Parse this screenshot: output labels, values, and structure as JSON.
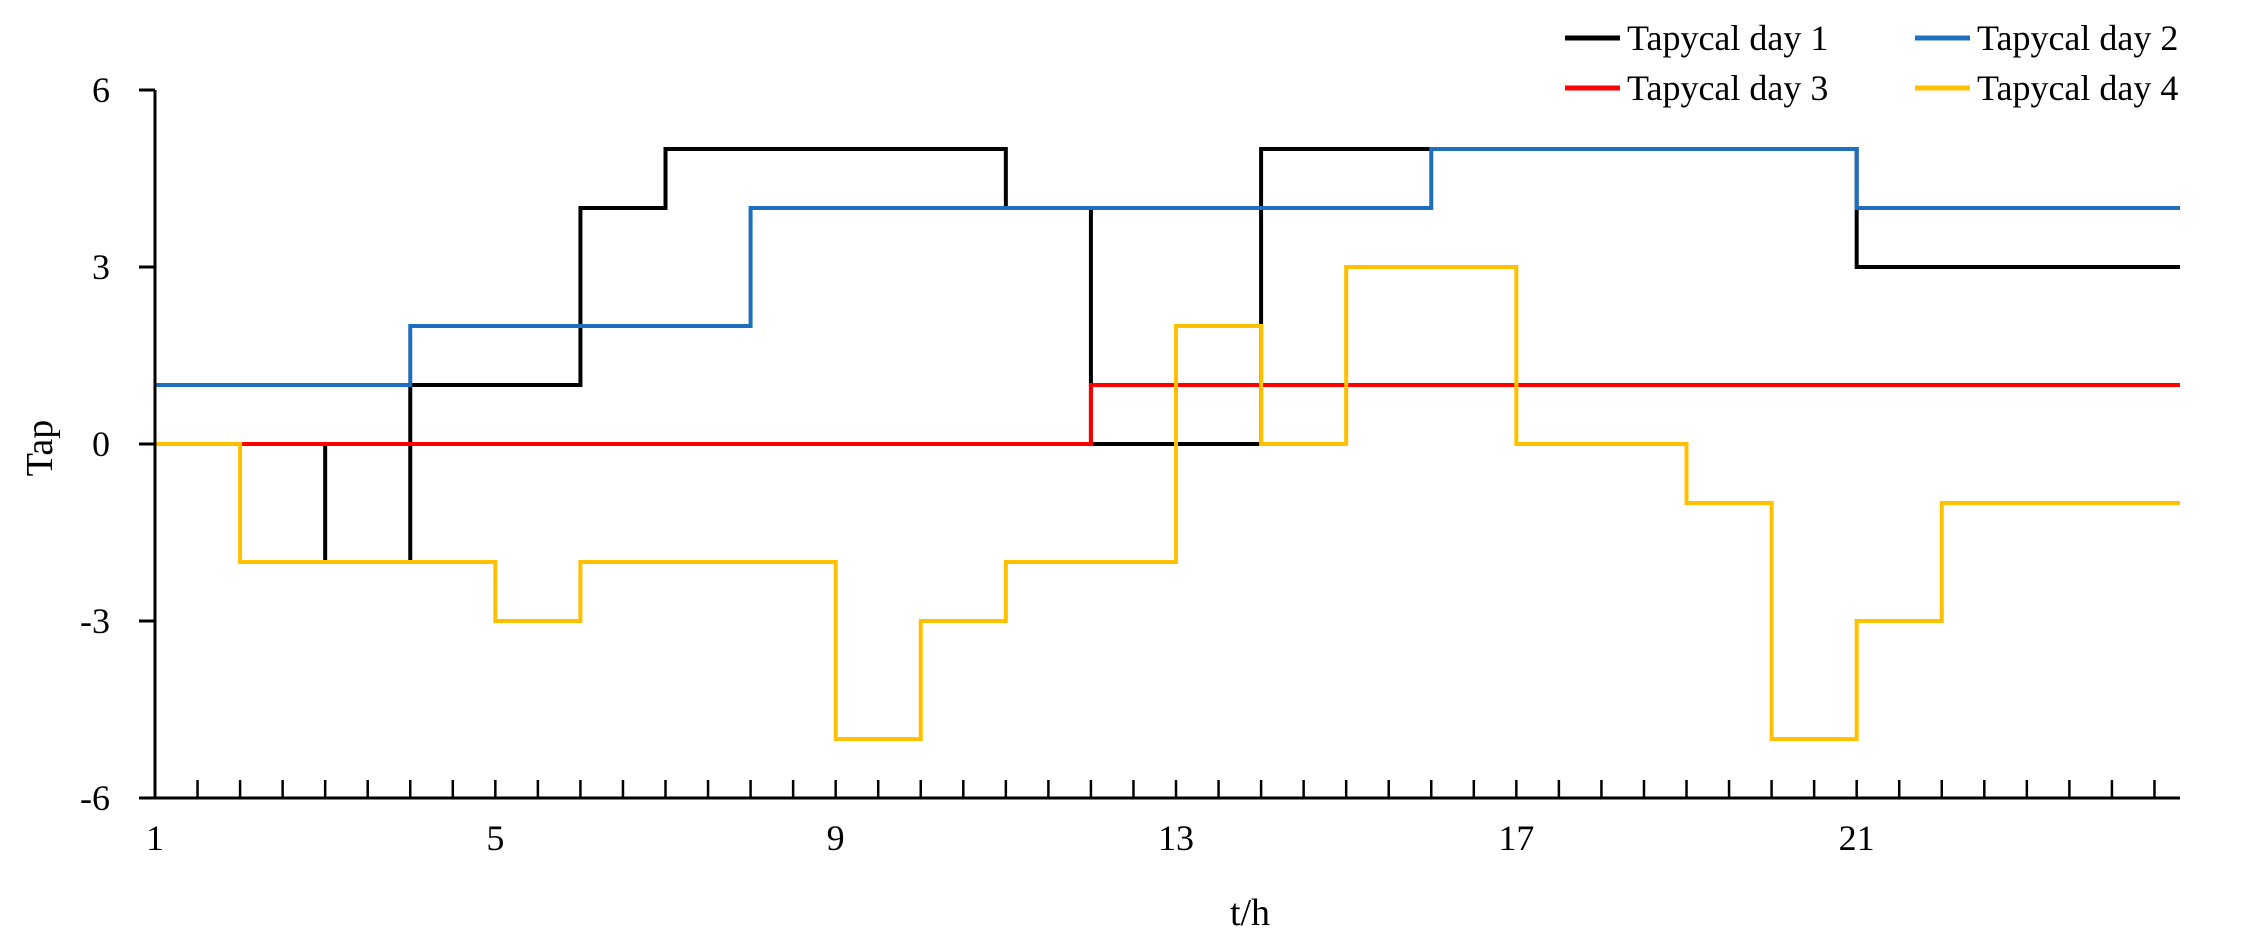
{
  "chart_data": {
    "type": "line",
    "step": "post",
    "xlabel": "t/h",
    "ylabel": "Tap",
    "xlim": [
      1,
      24
    ],
    "ylim": [
      -6,
      6
    ],
    "xticks": [
      1,
      5,
      9,
      13,
      17,
      21
    ],
    "yticks": [
      -6,
      -3,
      0,
      3,
      6
    ],
    "x": [
      1,
      2,
      3,
      4,
      5,
      6,
      7,
      8,
      9,
      10,
      11,
      12,
      13,
      14,
      15,
      16,
      17,
      18,
      19,
      20,
      21,
      22,
      23,
      24
    ],
    "legend_position": "top-right",
    "series": [
      {
        "name": "Tapycal day 1",
        "color": "#000000",
        "values": [
          0,
          0,
          -2,
          1,
          1,
          4,
          5,
          5,
          5,
          5,
          4,
          0,
          0,
          5,
          5,
          5,
          5,
          5,
          5,
          5,
          3,
          3,
          3,
          3
        ]
      },
      {
        "name": "Tapycal day 2",
        "color": "#1f6fc0",
        "values": [
          1,
          1,
          1,
          2,
          2,
          2,
          2,
          4,
          4,
          4,
          4,
          4,
          4,
          4,
          4,
          5,
          5,
          5,
          5,
          5,
          4,
          4,
          4,
          4
        ]
      },
      {
        "name": "Tapycal day 3",
        "color": "#ff0000",
        "values": [
          0,
          0,
          0,
          0,
          0,
          0,
          0,
          0,
          0,
          0,
          0,
          1,
          1,
          1,
          1,
          1,
          1,
          1,
          1,
          1,
          1,
          1,
          1,
          1
        ]
      },
      {
        "name": "Tapycal day 4",
        "color": "#ffc000",
        "values": [
          0,
          -2,
          -2,
          -2,
          -3,
          -2,
          -2,
          -2,
          -5,
          -3,
          -2,
          -2,
          2,
          0,
          3,
          3,
          0,
          0,
          -1,
          -5,
          -3,
          -1,
          -1,
          -1
        ]
      }
    ]
  }
}
